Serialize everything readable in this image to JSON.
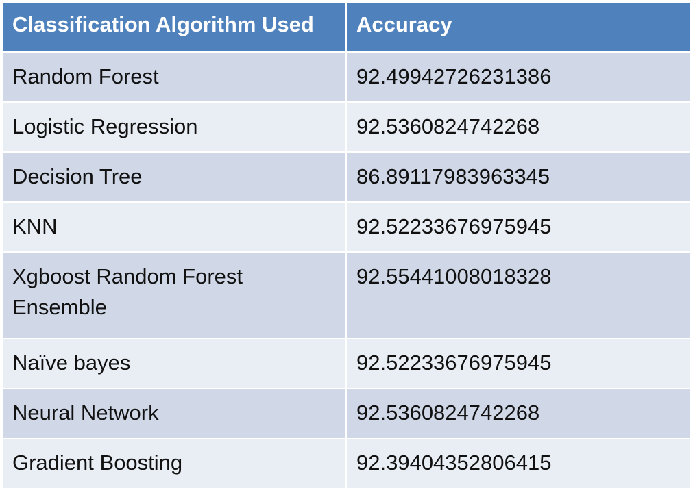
{
  "table": {
    "headers": [
      "Classification Algorithm Used",
      "Accuracy"
    ],
    "rows": [
      {
        "algorithm": "Random Forest",
        "accuracy": "92.49942726231386"
      },
      {
        "algorithm": "Logistic Regression",
        "accuracy": "92.5360824742268"
      },
      {
        "algorithm": "Decision Tree",
        "accuracy": "86.89117983963345"
      },
      {
        "algorithm": "KNN",
        "accuracy": "92.52233676975945"
      },
      {
        "algorithm": "Xgboost Random Forest Ensemble",
        "accuracy": "92.55441008018328"
      },
      {
        "algorithm": "Naïve bayes",
        "accuracy": "92.52233676975945"
      },
      {
        "algorithm": "Neural Network",
        "accuracy": "92.5360824742268"
      },
      {
        "algorithm": "Gradient Boosting",
        "accuracy": "92.39404352806415"
      }
    ]
  },
  "colors": {
    "header_bg": "#4f81bd",
    "row_odd_bg": "#d0d8e8",
    "row_even_bg": "#e9edf4"
  }
}
